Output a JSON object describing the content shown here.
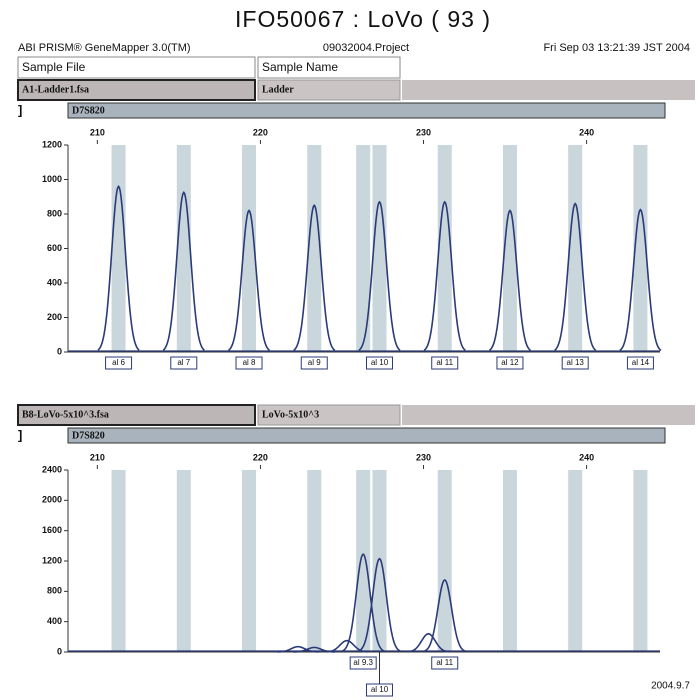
{
  "title": "IFO50067 : LoVo ( 93 )",
  "header": {
    "software": "ABI PRISM® GeneMapper 3.0(TM)",
    "project": "09032004.Project",
    "date": "Fri Sep 03 13:21:39 JST 2004"
  },
  "columns": [
    "Sample File",
    "Sample Name"
  ],
  "footer": "2004.9.7",
  "chart_data": [
    {
      "type": "line",
      "sample_file": "A1-Ladder1.fsa",
      "sample_name": "Ladder",
      "marker": "D7S820",
      "xlim": [
        208.2,
        244.5
      ],
      "xticks": [
        210,
        220,
        230,
        240
      ],
      "ylim": [
        0,
        1200
      ],
      "yticks": [
        0,
        200,
        400,
        600,
        800,
        1000,
        1200
      ],
      "allele_bins": [
        211.3,
        215.3,
        219.3,
        223.3,
        226.3,
        227.3,
        231.3,
        235.3,
        239.3,
        243.3
      ],
      "series": [
        {
          "name": "Ladder",
          "color": "#2b3a78",
          "x": [
            211.3,
            215.3,
            219.3,
            223.3,
            227.3,
            231.3,
            235.3,
            239.3,
            243.3
          ],
          "values": [
            960,
            925,
            820,
            850,
            870,
            870,
            820,
            860,
            825
          ],
          "labels": [
            "al 6",
            "al 7",
            "al 8",
            "al 9",
            "al 10",
            "al 11",
            "al 12",
            "al 13",
            "al 14"
          ]
        }
      ]
    },
    {
      "type": "line",
      "sample_file": "B8-LoVo-5x10^3.fsa",
      "sample_name": "LoVo-5x10^3",
      "marker": "D7S820",
      "xlim": [
        208.2,
        244.5
      ],
      "xticks": [
        210,
        220,
        230,
        240
      ],
      "ylim": [
        0,
        2400
      ],
      "yticks": [
        0,
        400,
        800,
        1200,
        1600,
        2000,
        2400
      ],
      "allele_bins": [
        211.3,
        215.3,
        219.3,
        223.3,
        226.3,
        227.3,
        231.3,
        235.3,
        239.3,
        243.3
      ],
      "series": [
        {
          "name": "LoVo-5x10^3",
          "color": "#2b3a78",
          "x": [
            222.3,
            223.3,
            225.3,
            226.3,
            227.3,
            230.3,
            231.3
          ],
          "values": [
            70,
            60,
            150,
            1290,
            1230,
            240,
            950
          ],
          "labels": [
            null,
            null,
            null,
            "al 9.3",
            "al 10",
            null,
            "al 11"
          ]
        }
      ]
    }
  ]
}
